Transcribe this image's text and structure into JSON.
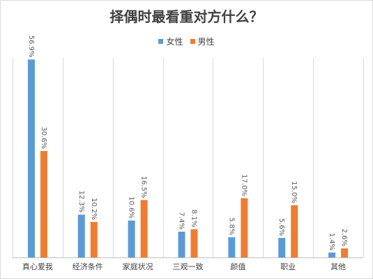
{
  "chart_data": {
    "type": "bar",
    "title": "择偶时最看重对方什么？",
    "categories": [
      "真心爱我",
      "经济条件",
      "家庭状况",
      "三观一致",
      "颜值",
      "职业",
      "其他"
    ],
    "series": [
      {
        "name": "女性",
        "color": "#5b9bd5",
        "values": [
          56.9,
          12.3,
          10.6,
          7.4,
          5.8,
          5.6,
          1.4
        ],
        "labels": [
          "56.9%",
          "12.3%",
          "10.6%",
          "7.4%",
          "5.8%",
          "5.6%",
          "1.4%"
        ]
      },
      {
        "name": "男性",
        "color": "#ed7d31",
        "values": [
          30.6,
          10.2,
          16.5,
          8.1,
          17.0,
          15.0,
          2.6
        ],
        "labels": [
          "30.6%",
          "10.2%",
          "16.5%",
          "8.1%",
          "17.0%",
          "15.0%",
          "2.6%"
        ]
      }
    ],
    "ylim": [
      0,
      60
    ],
    "legend_position": "top-center",
    "grid": false,
    "category_separators": true
  }
}
